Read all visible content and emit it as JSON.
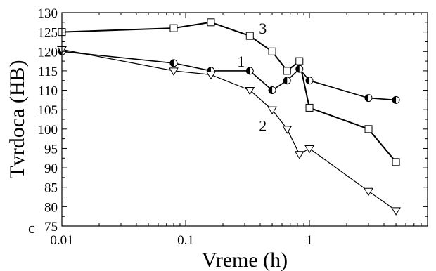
{
  "chart_data": {
    "type": "line",
    "panel_label": "c",
    "xlabel": "Vreme (h)",
    "ylabel": "Tvrdoca (HB)",
    "x_scale": "log",
    "xlim": [
      0.01,
      9
    ],
    "ylim": [
      75,
      130
    ],
    "x_ticks": [
      {
        "value": 0.01,
        "label": "0.01"
      },
      {
        "value": 0.1,
        "label": "0.1"
      },
      {
        "value": 1,
        "label": "1"
      }
    ],
    "y_ticks": [
      75,
      80,
      85,
      90,
      95,
      100,
      105,
      110,
      115,
      120,
      125,
      130
    ],
    "grid": false,
    "series": [
      {
        "label": "1",
        "marker": "half-filled-circle",
        "line_width": 1.6,
        "x": [
          0.01,
          0.08,
          0.16,
          0.33,
          0.5,
          0.66,
          0.83,
          1.0,
          3.0,
          5.0
        ],
        "y": [
          120,
          117,
          115,
          115,
          110,
          112.5,
          115.5,
          112.5,
          108,
          107.5
        ]
      },
      {
        "label": "2",
        "marker": "triangle-down",
        "line_width": 1.2,
        "x": [
          0.01,
          0.08,
          0.16,
          0.33,
          0.5,
          0.66,
          0.83,
          1.0,
          3.0,
          5.0
        ],
        "y": [
          120.5,
          115,
          114,
          110,
          105,
          100,
          93.5,
          95,
          84,
          79
        ]
      },
      {
        "label": "3",
        "marker": "square",
        "line_width": 2.0,
        "x": [
          0.01,
          0.08,
          0.16,
          0.33,
          0.5,
          0.66,
          0.83,
          1.0,
          3.0,
          5.0
        ],
        "y": [
          125,
          126,
          127.5,
          124,
          120,
          115,
          117.5,
          105.5,
          100,
          91.5
        ]
      }
    ],
    "series_labels": [
      {
        "text": "3",
        "x": 0.42,
        "y": 126
      },
      {
        "text": "1",
        "x": 0.28,
        "y": 117.5
      },
      {
        "text": "2",
        "x": 0.42,
        "y": 101
      }
    ]
  }
}
